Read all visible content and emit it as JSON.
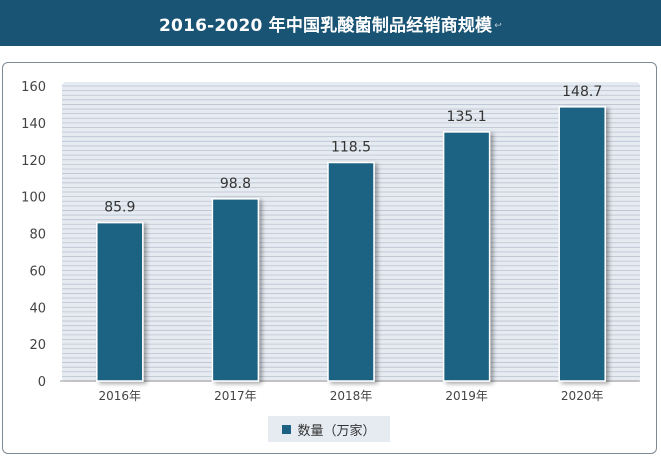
{
  "header": {
    "title": "2016-2020 年中国乳酸菌制品经销商规模",
    "title_mark": "↩",
    "background": "#1a5474"
  },
  "chart_data": {
    "type": "bar",
    "categories": [
      "2016年",
      "2017年",
      "2018年",
      "2019年",
      "2020年"
    ],
    "series": [
      {
        "name": "数量（万家）",
        "values": [
          85.9,
          98.8,
          118.5,
          135.1,
          148.7
        ],
        "color": "#1e6283"
      }
    ],
    "data_labels": [
      "85.9",
      "98.8",
      "118.5",
      "135.1",
      "148.7"
    ],
    "ylim": [
      0,
      160
    ],
    "yticks": [
      0,
      20,
      40,
      60,
      80,
      100,
      120,
      140,
      160
    ],
    "grid": true,
    "legend_position": "bottom"
  }
}
